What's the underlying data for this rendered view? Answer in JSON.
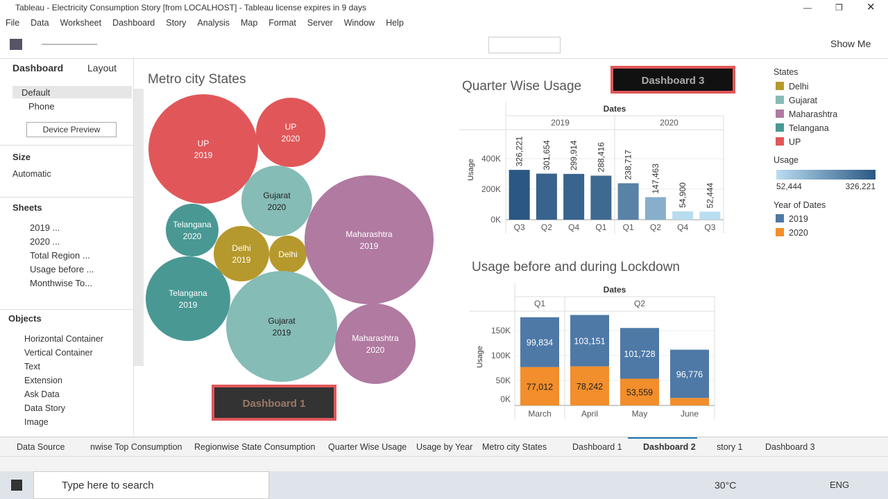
{
  "window": {
    "title": "Tableau - Electricity Consumption Story [from LOCALHOST] - Tableau license expires in 9 days"
  },
  "menu": [
    "File",
    "Data",
    "Worksheet",
    "Dashboard",
    "Story",
    "Analysis",
    "Map",
    "Format",
    "Server",
    "Window",
    "Help"
  ],
  "toolbar": {
    "show_me": "Show Me"
  },
  "left_pane": {
    "tabs": [
      "Dashboard",
      "Layout"
    ],
    "devices": [
      "Default",
      "Phone"
    ],
    "device_preview": "Device Preview",
    "size_heading": "Size",
    "size_value": "Automatic",
    "sheets_heading": "Sheets",
    "sheets": [
      "2019 ...",
      "2020 ...",
      "Total Region ...",
      "Usage  before ...",
      "Monthwise To..."
    ],
    "objects_heading": "Objects",
    "objects": [
      "Horizontal Container",
      "Vertical Container",
      "Text",
      "Extension",
      "Ask Data",
      "Data Story",
      "Image"
    ]
  },
  "bubbles": {
    "title": "Metro city States",
    "items": [
      {
        "state": "UP",
        "year": "2019"
      },
      {
        "state": "UP",
        "year": "2020"
      },
      {
        "state": "Gujarat",
        "year": "2020"
      },
      {
        "state": "Telangana",
        "year": "2020"
      },
      {
        "state": "Delhi",
        "year": "2019"
      },
      {
        "state": "Delhi"
      },
      {
        "state": "Maharashtra",
        "year": "2019"
      },
      {
        "state": "Telangana",
        "year": "2019"
      },
      {
        "state": "Gujarat",
        "year": "2019"
      },
      {
        "state": "Maharashtra",
        "year": "2020"
      }
    ]
  },
  "buttons": [
    "Dashboard 1",
    "Dashboard 3"
  ],
  "chart_data": [
    {
      "type": "bar",
      "title": "Quarter Wise Usage",
      "column_header": "Dates",
      "y_label": "Usage",
      "ylim": [
        0,
        590000
      ],
      "yticks": [
        {
          "value": 0,
          "label": "0K"
        },
        {
          "value": 200000,
          "label": "200K"
        },
        {
          "value": 400000,
          "label": "400K"
        }
      ],
      "color_range": [
        "#b9ddf1",
        "#2a5783"
      ],
      "groups": [
        {
          "name": "2019",
          "categories": [
            "Q3",
            "Q2",
            "Q4",
            "Q1"
          ],
          "values": [
            326221,
            301654,
            299914,
            288416
          ],
          "value_labels": [
            "326,221",
            "301,654",
            "299,914",
            "288,416"
          ]
        },
        {
          "name": "2020",
          "categories": [
            "Q1",
            "Q2",
            "Q4",
            "Q3"
          ],
          "values": [
            238717,
            147463,
            54900,
            52444
          ],
          "value_labels": [
            "238,717",
            "147,463",
            "54,900",
            "52,444"
          ]
        }
      ]
    },
    {
      "type": "stacked_bar",
      "title": "Usage  before and during Lockdown",
      "column_header": "Dates",
      "y_label": "Usage",
      "ylim": [
        0,
        189000
      ],
      "yticks": [
        {
          "value": 0,
          "label": "0K"
        },
        {
          "value": 50000,
          "label": "50K"
        },
        {
          "value": 100000,
          "label": "100K"
        },
        {
          "value": 150000,
          "label": "150K"
        }
      ],
      "groups": [
        {
          "name": "Q1",
          "categories": [
            "March"
          ]
        },
        {
          "name": "Q2",
          "categories": [
            "April",
            "May",
            "June"
          ]
        }
      ],
      "series": [
        {
          "name": "2019",
          "color": "#4e79a7",
          "values": [
            99834,
            103151,
            101728,
            96776
          ],
          "value_labels": [
            "99,834",
            "103,151",
            "101,728",
            "96,776"
          ]
        },
        {
          "name": "2020",
          "color": "#f28e2b",
          "values": [
            77012,
            78242,
            53559,
            15000
          ],
          "value_labels": [
            "77,012",
            "78,242",
            "53,559",
            null
          ]
        }
      ]
    }
  ],
  "legends": {
    "states": {
      "title": "States",
      "items": [
        {
          "name": "Delhi",
          "color": "#b6992d"
        },
        {
          "name": "Gujarat",
          "color": "#86bcb6"
        },
        {
          "name": "Maharashtra",
          "color": "#b07aa1"
        },
        {
          "name": "Telangana",
          "color": "#499894"
        },
        {
          "name": "UP",
          "color": "#e15759"
        }
      ]
    },
    "usage": {
      "title": "Usage",
      "min": {
        "value": 52444,
        "label": "52,444"
      },
      "max": {
        "value": 326221,
        "label": "326,221"
      }
    },
    "year": {
      "title": "Year of Dates"
    }
  },
  "tabs": [
    "Data Source",
    "nwise Top Consumption",
    "Regionwise State Consumption",
    "Quarter Wise Usage",
    "Usage by Year",
    "Metro city States",
    "Dashboard 1",
    "Dashboard 2",
    "story 1",
    "Dashboard 3"
  ],
  "taskbar": {
    "search": "Type here to search",
    "temperature": "30°C",
    "language": "ENG"
  }
}
